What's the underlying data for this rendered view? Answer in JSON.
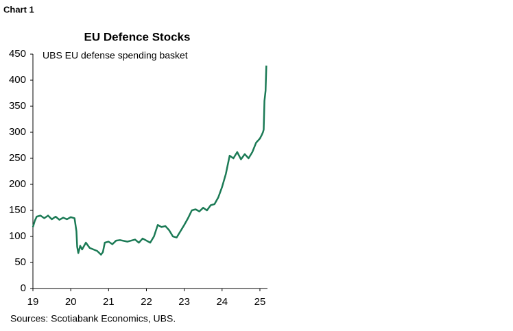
{
  "chart_data": {
    "type": "line",
    "header": "Chart 1",
    "title": "EU Defence Stocks",
    "subtitle": "UBS EU defense spending basket",
    "source": "Sources: Scotiabank Economics, UBS.",
    "x": [
      19.0,
      19.05,
      19.1,
      19.2,
      19.3,
      19.4,
      19.5,
      19.6,
      19.7,
      19.8,
      19.9,
      20.0,
      20.1,
      20.15,
      20.17,
      20.2,
      20.25,
      20.3,
      20.4,
      20.5,
      20.6,
      20.7,
      20.8,
      20.85,
      20.9,
      21.0,
      21.1,
      21.2,
      21.3,
      21.5,
      21.7,
      21.8,
      21.9,
      22.0,
      22.1,
      22.2,
      22.3,
      22.4,
      22.5,
      22.6,
      22.7,
      22.8,
      22.9,
      23.0,
      23.1,
      23.2,
      23.3,
      23.4,
      23.5,
      23.6,
      23.7,
      23.8,
      23.9,
      24.0,
      24.1,
      24.2,
      24.3,
      24.4,
      24.5,
      24.6,
      24.7,
      24.8,
      24.9,
      25.0,
      25.05,
      25.08,
      25.1,
      25.12,
      25.15,
      25.17
    ],
    "series": [
      {
        "name": "UBS EU defense spending basket",
        "color": "#1b7a55",
        "values": [
          118,
          130,
          138,
          140,
          135,
          140,
          133,
          138,
          132,
          136,
          133,
          137,
          135,
          110,
          80,
          68,
          82,
          75,
          88,
          78,
          75,
          72,
          65,
          70,
          88,
          90,
          85,
          92,
          93,
          90,
          94,
          88,
          96,
          92,
          88,
          100,
          122,
          118,
          120,
          112,
          100,
          98,
          110,
          122,
          135,
          150,
          152,
          148,
          155,
          150,
          160,
          162,
          175,
          195,
          220,
          255,
          250,
          262,
          248,
          258,
          250,
          262,
          280,
          288,
          295,
          300,
          305,
          360,
          380,
          428
        ]
      }
    ],
    "xlim": [
      19,
      25.2
    ],
    "xticks": [
      19,
      20,
      21,
      22,
      23,
      24,
      25
    ],
    "ylim": [
      0,
      450
    ],
    "yticks": [
      0,
      50,
      100,
      150,
      200,
      250,
      300,
      350,
      400,
      450
    ]
  }
}
